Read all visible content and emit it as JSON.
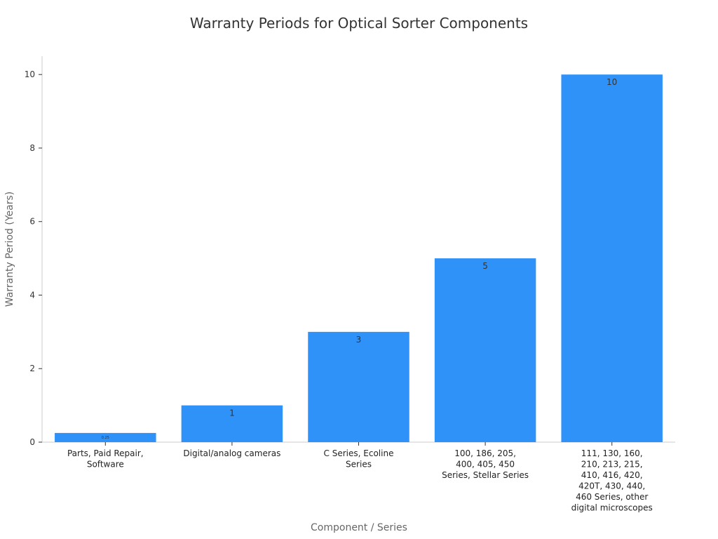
{
  "chart_data": {
    "type": "bar",
    "title": "Warranty Periods for Optical Sorter Components",
    "xlabel": "Component / Series",
    "ylabel": "Warranty Period (Years)",
    "categories": [
      [
        "Parts, Paid Repair,",
        "Software"
      ],
      [
        "Digital/analog cameras"
      ],
      [
        "C Series, Ecoline",
        "Series"
      ],
      [
        "100, 186, 205,",
        "400, 405, 450",
        "Series, Stellar Series"
      ],
      [
        "111, 130, 160,",
        "210, 213, 215,",
        "410, 416, 420,",
        "420T, 430, 440,",
        "460 Series, other",
        "digital microscopes"
      ]
    ],
    "values": [
      0.25,
      1,
      3,
      5,
      10
    ],
    "data_labels": [
      "0.25",
      "1",
      "3",
      "5",
      "10"
    ],
    "yticks": [
      0,
      2,
      4,
      6,
      8,
      10
    ],
    "ylim": [
      0,
      10.5
    ],
    "grid": false,
    "bar_color": "#2f92f8"
  }
}
